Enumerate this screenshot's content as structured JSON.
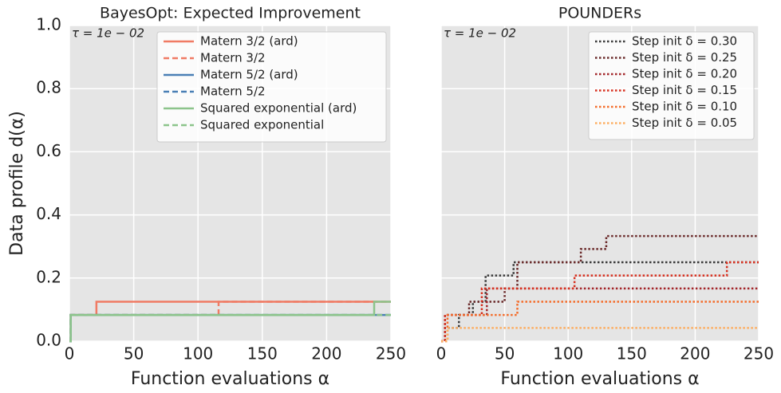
{
  "chart_data": [
    {
      "type": "line",
      "drawstyle": "steps-post",
      "title": "BayesOpt: Expected Improvement",
      "annotation": "τ = 1e − 02",
      "xlabel": "Function evaluations α",
      "ylabel": "Data profile d(α)",
      "xlim": [
        0,
        250
      ],
      "ylim": [
        0,
        1
      ],
      "xticks": [
        0,
        50,
        100,
        150,
        200,
        250
      ],
      "yticks": [
        {
          "value": 0,
          "label": "0.0"
        },
        0.2,
        0.4,
        0.6,
        0.8,
        {
          "value": 1,
          "label": "1.0"
        }
      ],
      "grid": true,
      "legend": "upper center",
      "ytick_labels": true,
      "series": [
        {
          "name": "Matern 3/2 (ard)",
          "color": "#f07b64",
          "linestyle": "solid",
          "x": [
            0,
            1,
            21,
            250
          ],
          "values": [
            0,
            0.083,
            0.125,
            0.125
          ]
        },
        {
          "name": "Matern 3/2",
          "color": "#f07b64",
          "linestyle": "dashed",
          "x": [
            0,
            1,
            116,
            250
          ],
          "values": [
            0,
            0.083,
            0.125,
            0.125
          ]
        },
        {
          "name": "Matern 5/2 (ard)",
          "color": "#4a7fb5",
          "linestyle": "solid",
          "x": [
            0,
            1,
            250
          ],
          "values": [
            0,
            0.083,
            0.083
          ]
        },
        {
          "name": "Matern 5/2",
          "color": "#4a7fb5",
          "linestyle": "dashed",
          "x": [
            0,
            1,
            250
          ],
          "values": [
            0,
            0.083,
            0.083
          ]
        },
        {
          "name": "Squared exponential (ard)",
          "color": "#8cc48b",
          "linestyle": "solid",
          "x": [
            0,
            1,
            237,
            250
          ],
          "values": [
            0,
            0.083,
            0.125,
            0.125
          ]
        },
        {
          "name": "Squared exponential",
          "color": "#8cc48b",
          "linestyle": "dashed",
          "x": [
            0,
            1,
            250
          ],
          "values": [
            0,
            0.083,
            0.083
          ]
        }
      ]
    },
    {
      "type": "line",
      "drawstyle": "steps-post",
      "title": "POUNDERs",
      "annotation": "τ = 1e − 02",
      "xlabel": "Function evaluations α",
      "xlim": [
        0,
        250
      ],
      "ylim": [
        0,
        1
      ],
      "xticks": [
        0,
        50,
        100,
        150,
        200,
        250
      ],
      "yticks": [
        0,
        0.2,
        0.4,
        0.6,
        0.8,
        1
      ],
      "grid": true,
      "legend": "upper right",
      "ytick_labels": false,
      "series": [
        {
          "name": "Step init δ = 0.30",
          "color": "#3a3a3a",
          "linestyle": "dotted",
          "x": [
            0,
            3,
            14,
            25,
            35,
            57,
            250
          ],
          "values": [
            0,
            0.042,
            0.083,
            0.125,
            0.208,
            0.25,
            0.25
          ]
        },
        {
          "name": "Step init δ = 0.25",
          "color": "#6b2b2b",
          "linestyle": "dotted",
          "x": [
            0,
            3,
            22,
            50,
            60,
            110,
            130,
            250
          ],
          "values": [
            0,
            0.083,
            0.125,
            0.167,
            0.25,
            0.292,
            0.333,
            0.333
          ]
        },
        {
          "name": "Step init δ = 0.20",
          "color": "#a3262a",
          "linestyle": "dotted",
          "x": [
            0,
            3,
            36,
            250
          ],
          "values": [
            0,
            0.083,
            0.167,
            0.167
          ]
        },
        {
          "name": "Step init δ = 0.15",
          "color": "#d7301f",
          "linestyle": "dotted",
          "x": [
            0,
            3,
            32,
            105,
            225,
            250
          ],
          "values": [
            0,
            0.083,
            0.167,
            0.208,
            0.25,
            0.25
          ]
        },
        {
          "name": "Step init δ = 0.10",
          "color": "#f46d2b",
          "linestyle": "dotted",
          "x": [
            0,
            5,
            60,
            250
          ],
          "values": [
            0,
            0.083,
            0.125,
            0.125
          ]
        },
        {
          "name": "Step init δ = 0.05",
          "color": "#fdae61",
          "linestyle": "dotted",
          "x": [
            0,
            5,
            250
          ],
          "values": [
            0,
            0.042,
            0.042
          ]
        }
      ]
    }
  ]
}
